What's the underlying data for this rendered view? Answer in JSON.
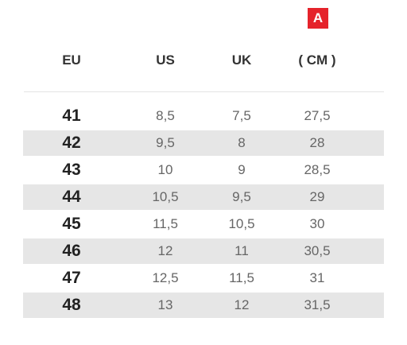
{
  "badge": {
    "label": "A",
    "color": "#e5232b"
  },
  "header": {
    "eu": "EU",
    "us": "US",
    "uk": "UK",
    "cm": "( CM )"
  },
  "rows": [
    {
      "eu": "41",
      "us": "8,5",
      "uk": "7,5",
      "cm": "27,5"
    },
    {
      "eu": "42",
      "us": "9,5",
      "uk": "8",
      "cm": "28"
    },
    {
      "eu": "43",
      "us": "10",
      "uk": "9",
      "cm": "28,5"
    },
    {
      "eu": "44",
      "us": "10,5",
      "uk": "9,5",
      "cm": "29"
    },
    {
      "eu": "45",
      "us": "11,5",
      "uk": "10,5",
      "cm": "30"
    },
    {
      "eu": "46",
      "us": "12",
      "uk": "11",
      "cm": "30,5"
    },
    {
      "eu": "47",
      "us": "12,5",
      "uk": "11,5",
      "cm": "31"
    },
    {
      "eu": "48",
      "us": "13",
      "uk": "12",
      "cm": "31,5"
    }
  ]
}
